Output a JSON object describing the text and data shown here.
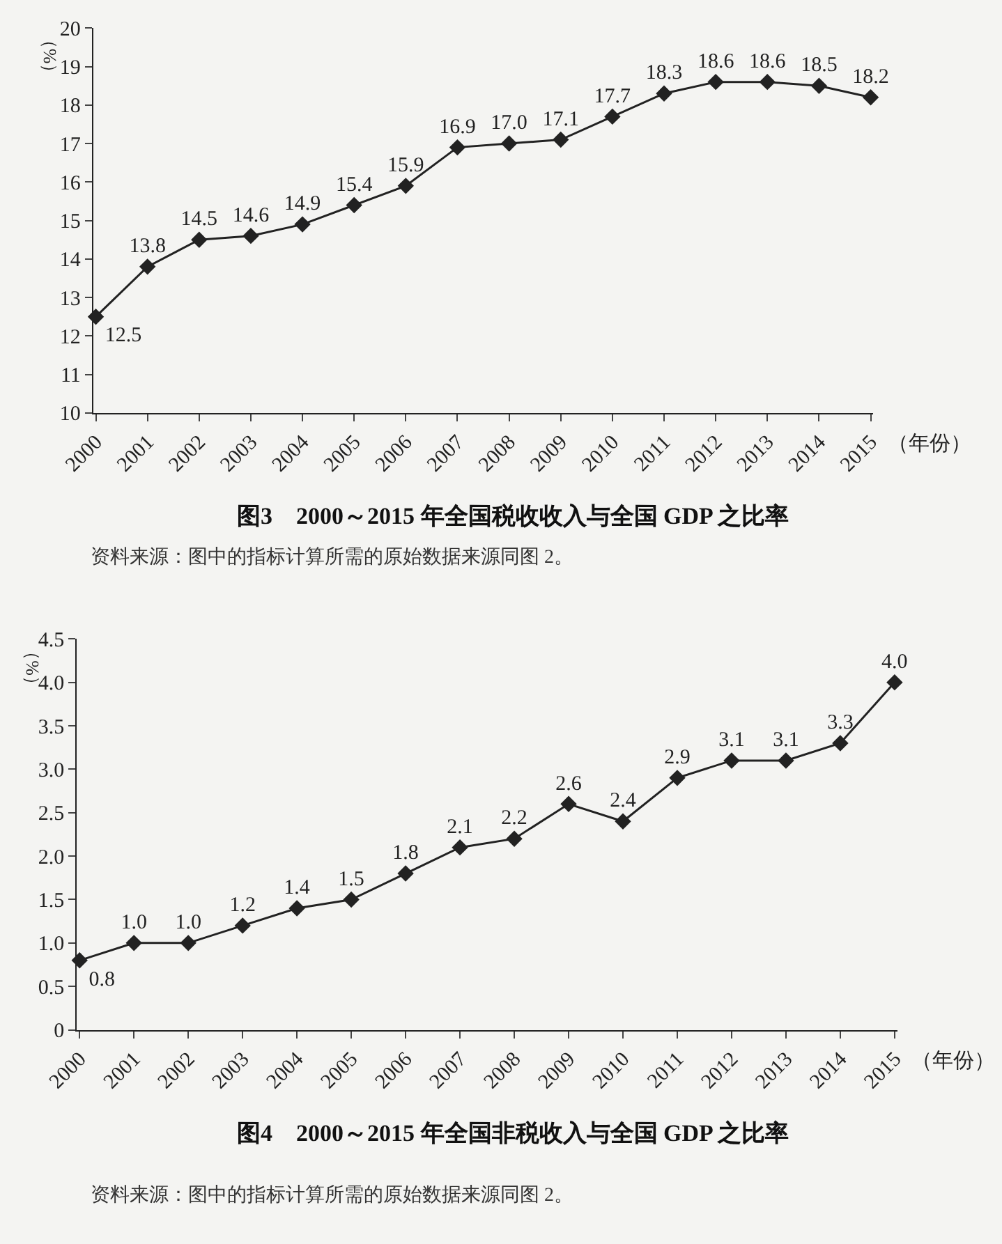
{
  "chart_data": [
    {
      "type": "line",
      "title": "图3　2000～2015 年全国税收收入与全国 GDP 之比率",
      "xlabel": "（年份）",
      "ylabel": "（%）",
      "categories": [
        "2000",
        "2001",
        "2002",
        "2003",
        "2004",
        "2005",
        "2006",
        "2007",
        "2008",
        "2009",
        "2010",
        "2011",
        "2012",
        "2013",
        "2014",
        "2015"
      ],
      "series": [
        {
          "color": "#222222",
          "values": [
            12.5,
            13.8,
            14.5,
            14.6,
            14.9,
            15.4,
            15.9,
            16.9,
            17.0,
            17.1,
            17.7,
            18.3,
            18.6,
            18.6,
            18.5,
            18.2
          ],
          "value_labels": [
            "12.5",
            "13.8",
            "14.5",
            "14.6",
            "14.9",
            "15.4",
            "15.9",
            "16.9",
            "17.0",
            "17.1",
            "17.7",
            "18.3",
            "18.6",
            "18.6",
            "18.5",
            "18.2"
          ]
        }
      ],
      "ylim": [
        10,
        20
      ],
      "yticks": [
        10,
        11,
        12,
        13,
        14,
        15,
        16,
        17,
        18,
        19,
        20
      ],
      "marker": "diamond",
      "line_style": "solid",
      "grid": false,
      "annotations": [
        "资料来源：图中的指标计算所需的原始数据来源同图 2。"
      ]
    },
    {
      "type": "line",
      "title": "图4　2000～2015 年全国非税收入与全国 GDP 之比率",
      "xlabel": "（年份）",
      "ylabel": "（%）",
      "categories": [
        "2000",
        "2001",
        "2002",
        "2003",
        "2004",
        "2005",
        "2006",
        "2007",
        "2008",
        "2009",
        "2010",
        "2011",
        "2012",
        "2013",
        "2014",
        "2015"
      ],
      "series": [
        {
          "color": "#222222",
          "values": [
            0.8,
            1.0,
            1.0,
            1.2,
            1.4,
            1.5,
            1.8,
            2.1,
            2.2,
            2.6,
            2.4,
            2.9,
            3.1,
            3.1,
            3.3,
            4.0
          ],
          "value_labels": [
            "0.8",
            "1.0",
            "1.0",
            "1.2",
            "1.4",
            "1.5",
            "1.8",
            "2.1",
            "2.2",
            "2.6",
            "2.4",
            "2.9",
            "3.1",
            "3.1",
            "3.3",
            "4.0"
          ]
        }
      ],
      "ylim": [
        0,
        4.5
      ],
      "yticks": [
        {
          "value": 0,
          "label": "0"
        },
        {
          "value": 0.5,
          "label": "0.5"
        },
        {
          "value": 1,
          "label": "1.0"
        },
        {
          "value": 1.5,
          "label": "1.5"
        },
        {
          "value": 2,
          "label": "2.0"
        },
        {
          "value": 2.5,
          "label": "2.5"
        },
        {
          "value": 3,
          "label": "3.0"
        },
        {
          "value": 3.5,
          "label": "3.5"
        },
        {
          "value": 4,
          "label": "4.0"
        },
        {
          "value": 4.5,
          "label": "4.5"
        }
      ],
      "marker": "diamond",
      "line_style": "solid",
      "grid": false,
      "annotations": [
        "资料来源：图中的指标计算所需的原始数据来源同图 2。"
      ]
    }
  ]
}
